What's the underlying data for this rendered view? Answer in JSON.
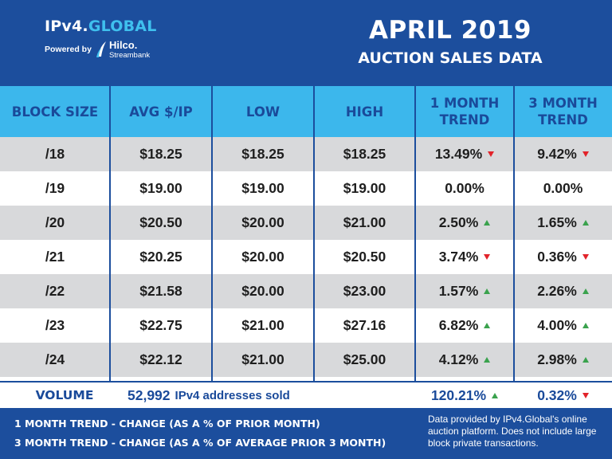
{
  "brand": {
    "name_main": "IPv4.",
    "name_accent": "GLOBAL",
    "powered_by": "Powered by",
    "partner_name": "Hilco.",
    "partner_sub": "Streambank"
  },
  "title": {
    "month": "APRIL 2019",
    "subtitle": "AUCTION SALES DATA"
  },
  "table": {
    "headers": {
      "block_size": "BLOCK SIZE",
      "avg": "AVG $/IP",
      "low": "LOW",
      "high": "HIGH",
      "trend1_line1": "1 MONTH",
      "trend1_line2": "TREND",
      "trend3_line1": "3 MONTH",
      "trend3_line2": "TREND"
    },
    "rows": [
      {
        "block": "/18",
        "avg": "$18.25",
        "low": "$18.25",
        "high": "$18.25",
        "trend1": "13.49%",
        "trend1_dir": "down",
        "trend3": "9.42%",
        "trend3_dir": "down"
      },
      {
        "block": "/19",
        "avg": "$19.00",
        "low": "$19.00",
        "high": "$19.00",
        "trend1": "0.00%",
        "trend1_dir": "none",
        "trend3": "0.00%",
        "trend3_dir": "none"
      },
      {
        "block": "/20",
        "avg": "$20.50",
        "low": "$20.00",
        "high": "$21.00",
        "trend1": "2.50%",
        "trend1_dir": "up",
        "trend3": "1.65%",
        "trend3_dir": "up"
      },
      {
        "block": "/21",
        "avg": "$20.25",
        "low": "$20.00",
        "high": "$20.50",
        "trend1": "3.74%",
        "trend1_dir": "down",
        "trend3": "0.36%",
        "trend3_dir": "down"
      },
      {
        "block": "/22",
        "avg": "$21.58",
        "low": "$20.00",
        "high": "$23.00",
        "trend1": "1.57%",
        "trend1_dir": "up",
        "trend3": "2.26%",
        "trend3_dir": "up"
      },
      {
        "block": "/23",
        "avg": "$22.75",
        "low": "$21.00",
        "high": "$27.16",
        "trend1": "6.82%",
        "trend1_dir": "up",
        "trend3": "4.00%",
        "trend3_dir": "up"
      },
      {
        "block": "/24",
        "avg": "$22.12",
        "low": "$21.00",
        "high": "$25.00",
        "trend1": "4.12%",
        "trend1_dir": "up",
        "trend3": "2.98%",
        "trend3_dir": "up"
      }
    ]
  },
  "volume": {
    "label": "VOLUME",
    "count": "52,992",
    "count_text": "IPv4 addresses sold",
    "trend1": "120.21%",
    "trend1_dir": "up",
    "trend3": "0.32%",
    "trend3_dir": "down"
  },
  "footer": {
    "legend1": "1 MONTH TREND - CHANGE (AS A % OF PRIOR MONTH)",
    "legend2": "3 MONTH TREND - CHANGE (AS A % OF AVERAGE PRIOR 3 MONTH)",
    "note": "Data provided by IPv4.Global's online auction platform. Does not include large block private transactions."
  },
  "colors": {
    "header_blue": "#1c4e9d",
    "table_header_cyan": "#3cb7ec",
    "row_shade": "#d8d9db",
    "arrow_up": "#3aa24d",
    "arrow_down": "#e2232a"
  }
}
